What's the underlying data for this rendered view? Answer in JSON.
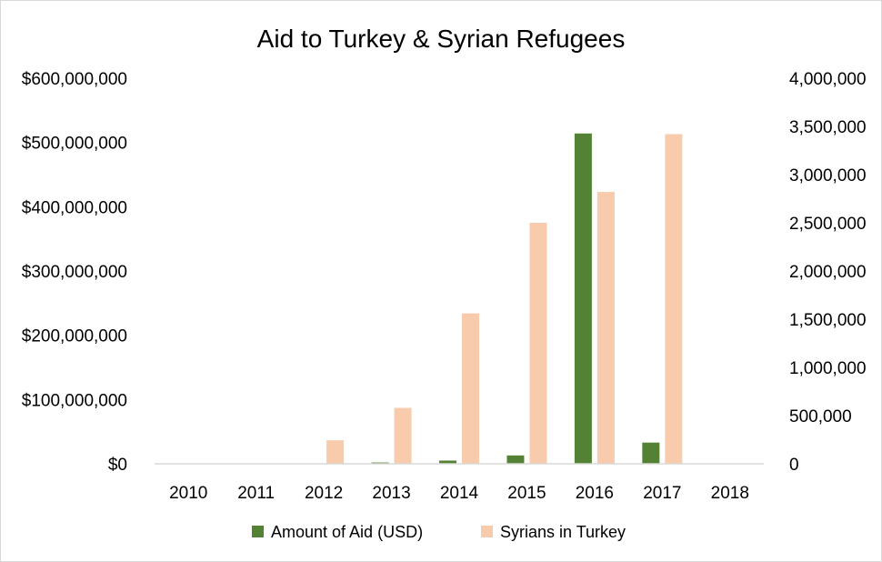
{
  "chart_data": {
    "type": "bar",
    "title": "Aid to Turkey & Syrian Refugees",
    "categories": [
      "2010",
      "2011",
      "2012",
      "2013",
      "2014",
      "2015",
      "2016",
      "2017",
      "2018"
    ],
    "series": [
      {
        "name": "Amount of Aid (USD)",
        "axis": "left",
        "color": "#548235",
        "values": [
          0,
          300000,
          600000,
          2000000,
          5000000,
          13000000,
          514000000,
          33000000,
          400000
        ]
      },
      {
        "name": "Syrians in Turkey",
        "axis": "right",
        "color": "#f8cbad",
        "values": [
          0,
          0,
          244000,
          580000,
          1560000,
          2500000,
          2820000,
          3420000,
          0
        ]
      }
    ],
    "y_left": {
      "min": 0,
      "max": 600000000,
      "tick_labels": [
        "$0",
        "$100,000,000",
        "$200,000,000",
        "$300,000,000",
        "$400,000,000",
        "$500,000,000",
        "$600,000,000"
      ]
    },
    "y_right": {
      "min": 0,
      "max": 4000000,
      "tick_labels": [
        "0",
        "500,000",
        "1,000,000",
        "1,500,000",
        "2,000,000",
        "2,500,000",
        "3,000,000",
        "3,500,000",
        "4,000,000"
      ]
    },
    "grid": false,
    "legend_position": "bottom",
    "axis_color": "#d9d9d9"
  }
}
